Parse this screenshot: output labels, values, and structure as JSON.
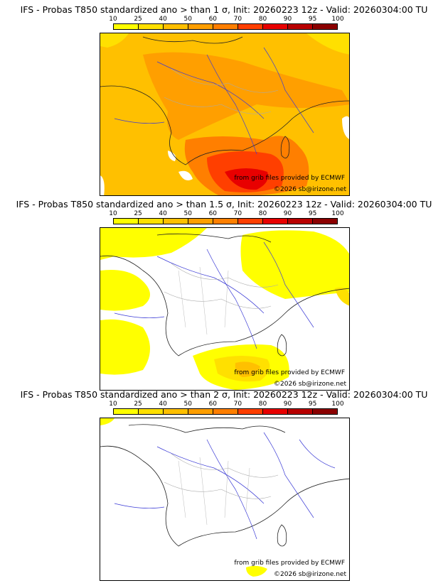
{
  "colorbar": {
    "ticks": [
      "10",
      "25",
      "40",
      "50",
      "60",
      "70",
      "80",
      "90",
      "95",
      "100"
    ],
    "colors": [
      "#ffff00",
      "#ffe000",
      "#ffc000",
      "#ff9f00",
      "#ff7f00",
      "#ff3f00",
      "#e80000",
      "#b80000",
      "#8b0000",
      "#5a0000"
    ]
  },
  "panels": [
    {
      "title": "IFS - Probas T850  standardized ano > than 1 σ, Init: 20260223 12z - Valid: 20260304:00 TU",
      "credit_source": "from grib files provided by ECMWF",
      "credit_copyright": "©2026 sb@irizone.net"
    },
    {
      "title": "IFS - Probas T850  standardized ano > than 1.5 σ, Init: 20260223 12z - Valid: 20260304:00 TU",
      "credit_source": "from grib files provided by ECMWF",
      "credit_copyright": "©2026 sb@irizone.net"
    },
    {
      "title": "IFS - Probas T850  standardized ano > than 2 σ, Init: 20260223 12z - Valid: 20260304:00 TU",
      "credit_source": "from grib files provided by ECMWF",
      "credit_copyright": "©2026 sb@irizone.net"
    }
  ]
}
